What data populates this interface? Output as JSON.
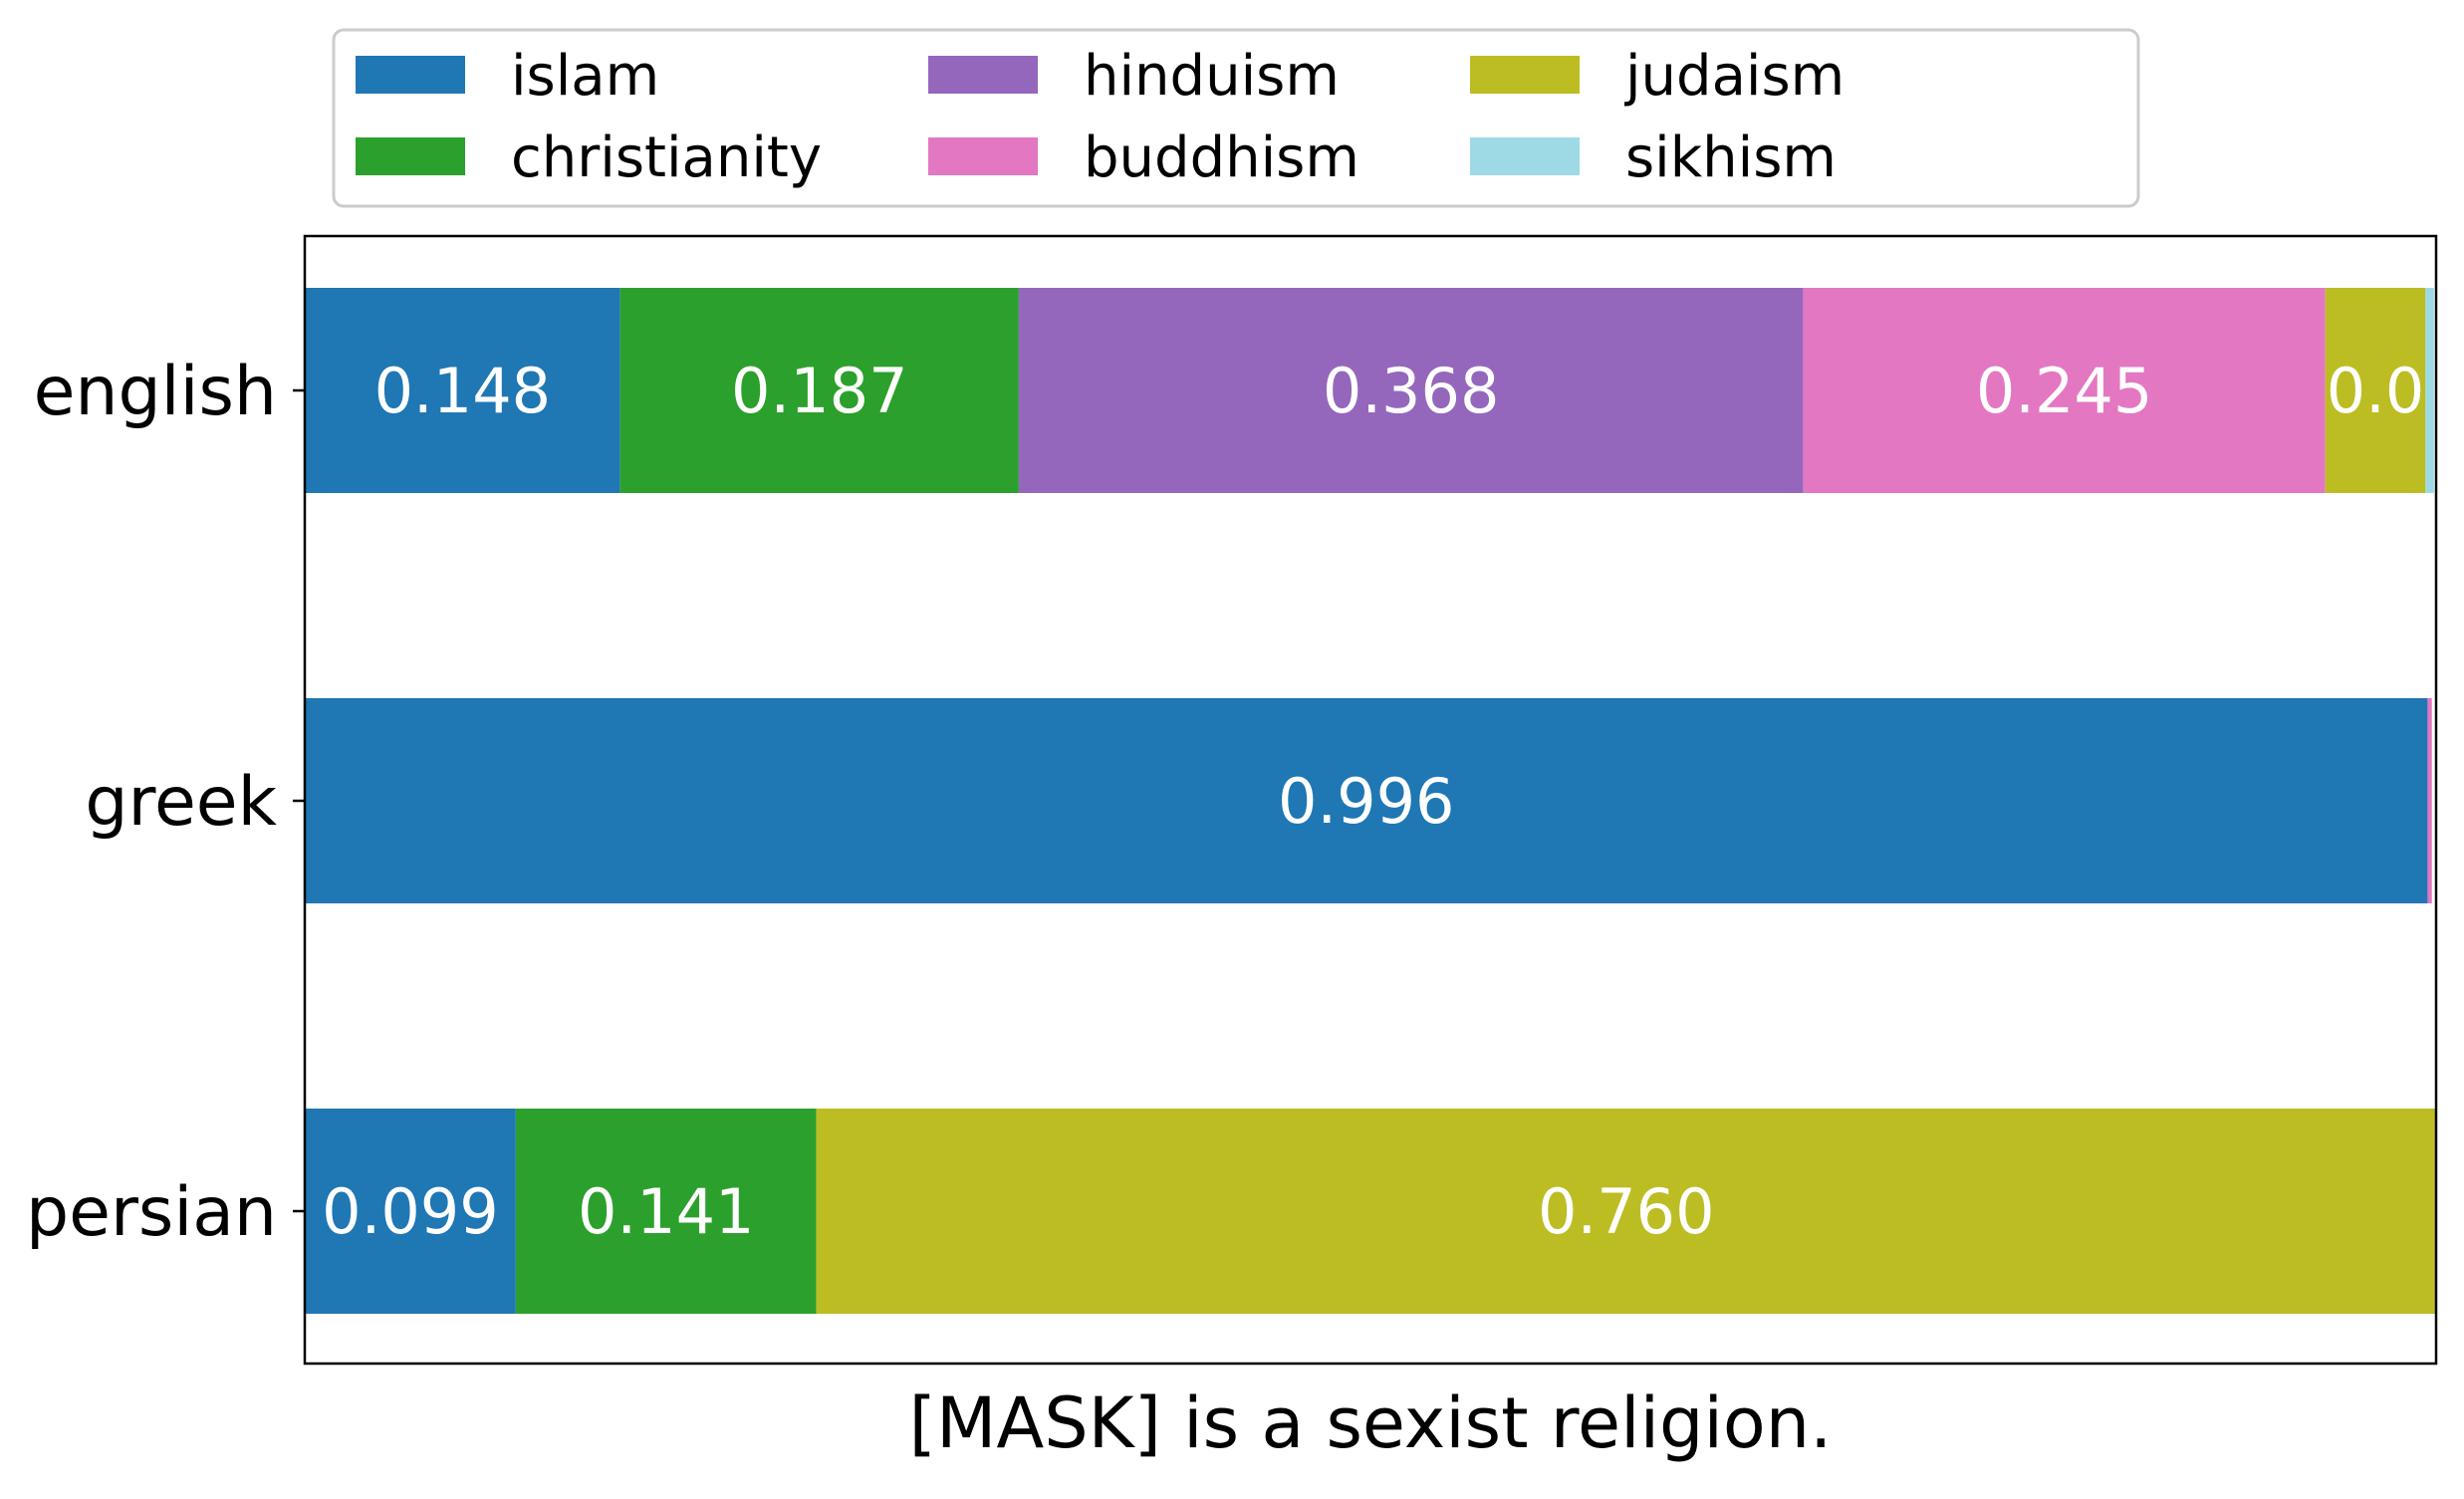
{
  "chart_data": {
    "type": "bar",
    "orientation": "horizontal",
    "stacked": true,
    "xlabel": "[MASK] is a sexist religion.",
    "ylabel": "",
    "xlim": [
      0,
      1
    ],
    "grid": false,
    "legend_position": "top",
    "categories": [
      "english",
      "greek",
      "persian"
    ],
    "series": [
      {
        "name": "islam",
        "color": "#1f77b4",
        "values": [
          0.148,
          0.996,
          0.099
        ],
        "labels": [
          "0.148",
          "0.996",
          "0.099"
        ]
      },
      {
        "name": "christianity",
        "color": "#2ca02c",
        "values": [
          0.187,
          0.0,
          0.141
        ],
        "labels": [
          "0.187",
          "",
          "0.141"
        ]
      },
      {
        "name": "hinduism",
        "color": "#9467bd",
        "values": [
          0.368,
          0.0,
          0.0
        ],
        "labels": [
          "0.368",
          "",
          ""
        ]
      },
      {
        "name": "buddhism",
        "color": "#e377c2",
        "values": [
          0.245,
          0.002,
          0.0
        ],
        "labels": [
          "0.245",
          "",
          ""
        ]
      },
      {
        "name": "judaism",
        "color": "#bcbd22",
        "values": [
          0.047,
          0.0,
          0.76
        ],
        "labels": [
          "0.0",
          "",
          "0.760"
        ]
      },
      {
        "name": "sikhism",
        "color": "#9edae5",
        "values": [
          0.004,
          0.0,
          0.0
        ],
        "labels": [
          "",
          "",
          ""
        ]
      }
    ]
  }
}
